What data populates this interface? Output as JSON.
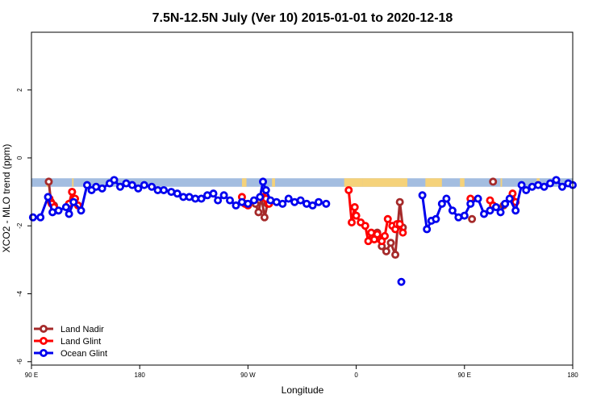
{
  "chart_data": {
    "type": "line",
    "title": "7.5N-12.5N July (Ver 10)   2015-01-01 to 2020-12-18",
    "xlabel": "Longitude",
    "ylabel": "XCO2 - MLO trend (ppm)",
    "xlim": [
      90,
      450
    ],
    "ylim": [
      -6.1,
      3.7
    ],
    "x_ticks": [
      {
        "value": 90,
        "label": "90 E"
      },
      {
        "value": 162,
        "label": "180"
      },
      {
        "value": 234,
        "label": "90 W"
      },
      {
        "value": 306,
        "label": "0"
      },
      {
        "value": 378,
        "label": "90 E"
      },
      {
        "value": 450,
        "label": "180"
      }
    ],
    "y_ticks": [
      {
        "value": 2,
        "label": "2"
      },
      {
        "value": 0,
        "label": "0"
      },
      {
        "value": -2,
        "label": "-2"
      },
      {
        "value": -4,
        "label": "-4"
      },
      {
        "value": -6,
        "label": "-6"
      }
    ],
    "grid": false,
    "legend_position": "bottom-left",
    "band": {
      "y_top": -0.6,
      "y_bottom": -0.85,
      "ocean_color": "#a3bde0",
      "land_color": "#f5d27a",
      "land_segments": [
        [
          100,
          102
        ],
        [
          117,
          118
        ],
        [
          230,
          233
        ],
        [
          250,
          252
        ],
        [
          298,
          310
        ],
        [
          310,
          340
        ],
        [
          352,
          363
        ],
        [
          375,
          378
        ],
        [
          402,
          403
        ],
        [
          426,
          428
        ]
      ]
    },
    "series": [
      {
        "name": "Land Nadir",
        "color": "#a52a2a",
        "segments": [
          [
            [
              101.5,
              -0.7
            ],
            [
              103,
              -1.3
            ],
            [
              105,
              -1.4
            ]
          ],
          [
            [
              117,
              -1.0
            ],
            [
              118.5,
              -1.25
            ]
          ],
          [
            [
              239,
              -1.35
            ],
            [
              241,
              -1.6
            ],
            [
              243,
              -1.15
            ],
            [
              245,
              -1.75
            ],
            [
              247,
              -1.35
            ]
          ],
          [
            [
              320,
              -2.2
            ],
            [
              323,
              -2.6
            ],
            [
              326,
              -2.75
            ],
            [
              329,
              -2.5
            ],
            [
              332,
              -2.85
            ],
            [
              335,
              -1.3
            ],
            [
              337,
              -2.05
            ]
          ],
          [
            [
              383,
              -1.8
            ]
          ],
          [
            [
              397,
              -0.7
            ]
          ],
          [
            [
              404,
              -1.4
            ]
          ]
        ]
      },
      {
        "name": "Land Glint",
        "color": "#ff0000",
        "segments": [
          [
            [
              102,
              -1.2
            ],
            [
              103.5,
              -1.35
            ],
            [
              105,
              -1.45
            ]
          ],
          [
            [
              115,
              -1.35
            ],
            [
              117,
              -1.0
            ],
            [
              119,
              -1.2
            ],
            [
              121,
              -1.4
            ]
          ],
          [
            [
              230,
              -1.15
            ],
            [
              232,
              -1.35
            ],
            [
              234,
              -1.4
            ]
          ],
          [
            [
              244,
              -1.15
            ],
            [
              246,
              -1.2
            ],
            [
              248,
              -1.35
            ]
          ],
          [
            [
              301,
              -0.95
            ],
            [
              303,
              -1.9
            ],
            [
              305,
              -1.45
            ],
            [
              306,
              -1.7
            ],
            [
              309,
              -1.9
            ],
            [
              312,
              -2.0
            ],
            [
              314,
              -2.45
            ],
            [
              316,
              -2.2
            ],
            [
              318,
              -2.4
            ],
            [
              320,
              -2.25
            ],
            [
              322,
              -2.4
            ],
            [
              323,
              -2.45
            ],
            [
              325,
              -2.3
            ],
            [
              327,
              -1.8
            ],
            [
              330,
              -2.0
            ],
            [
              332,
              -2.1
            ],
            [
              333,
              -1.95
            ],
            [
              335,
              -1.95
            ],
            [
              337,
              -2.2
            ]
          ],
          [
            [
              382,
              -1.2
            ]
          ],
          [
            [
              395,
              -1.25
            ],
            [
              397,
              -1.4
            ]
          ],
          [
            [
              410,
              -1.05
            ],
            [
              412,
              -1.3
            ]
          ]
        ]
      },
      {
        "name": "Ocean Glint",
        "color": "#0000ee",
        "segments": [
          [
            [
              91,
              -1.75
            ],
            [
              96,
              -1.75
            ],
            [
              101,
              -1.15
            ],
            [
              104,
              -1.6
            ],
            [
              108,
              -1.55
            ],
            [
              113,
              -1.45
            ],
            [
              115,
              -1.65
            ],
            [
              118,
              -1.3
            ],
            [
              123,
              -1.55
            ],
            [
              127,
              -0.8
            ],
            [
              130,
              -0.95
            ],
            [
              133,
              -0.85
            ],
            [
              137,
              -0.9
            ],
            [
              142,
              -0.75
            ],
            [
              145,
              -0.65
            ],
            [
              149,
              -0.85
            ],
            [
              153,
              -0.75
            ],
            [
              157,
              -0.8
            ],
            [
              161,
              -0.9
            ],
            [
              165,
              -0.8
            ],
            [
              170,
              -0.85
            ],
            [
              174,
              -0.95
            ],
            [
              178,
              -0.95
            ],
            [
              183,
              -1.0
            ],
            [
              187,
              -1.05
            ],
            [
              191,
              -1.15
            ],
            [
              195,
              -1.15
            ],
            [
              199,
              -1.2
            ],
            [
              203,
              -1.2
            ],
            [
              207,
              -1.1
            ],
            [
              211,
              -1.05
            ],
            [
              214,
              -1.25
            ],
            [
              218,
              -1.1
            ],
            [
              222,
              -1.25
            ],
            [
              226,
              -1.4
            ],
            [
              230,
              -1.3
            ],
            [
              234,
              -1.35
            ],
            [
              238,
              -1.25
            ],
            [
              242,
              -1.15
            ],
            [
              244,
              -0.7
            ],
            [
              246,
              -0.95
            ],
            [
              249,
              -1.25
            ],
            [
              253,
              -1.3
            ],
            [
              257,
              -1.35
            ],
            [
              261,
              -1.2
            ],
            [
              265,
              -1.3
            ],
            [
              269,
              -1.25
            ],
            [
              273,
              -1.35
            ],
            [
              277,
              -1.4
            ],
            [
              281,
              -1.3
            ],
            [
              286,
              -1.35
            ]
          ],
          [
            [
              336,
              -3.65
            ]
          ],
          [
            [
              350,
              -1.1
            ],
            [
              353,
              -2.1
            ],
            [
              356,
              -1.85
            ],
            [
              359,
              -1.8
            ],
            [
              363,
              -1.35
            ],
            [
              366,
              -1.2
            ],
            [
              370,
              -1.55
            ],
            [
              374,
              -1.75
            ],
            [
              378,
              -1.7
            ],
            [
              382,
              -1.35
            ],
            [
              387,
              -1.2
            ],
            [
              391,
              -1.65
            ],
            [
              395,
              -1.55
            ],
            [
              399,
              -1.45
            ],
            [
              402,
              -1.6
            ],
            [
              405,
              -1.35
            ],
            [
              408,
              -1.2
            ],
            [
              412,
              -1.55
            ],
            [
              416,
              -0.8
            ],
            [
              419,
              -0.95
            ],
            [
              423,
              -0.85
            ],
            [
              427,
              -0.8
            ],
            [
              431,
              -0.85
            ],
            [
              435,
              -0.75
            ],
            [
              439,
              -0.65
            ],
            [
              443,
              -0.85
            ],
            [
              447,
              -0.75
            ],
            [
              450,
              -0.8
            ]
          ]
        ]
      }
    ]
  }
}
